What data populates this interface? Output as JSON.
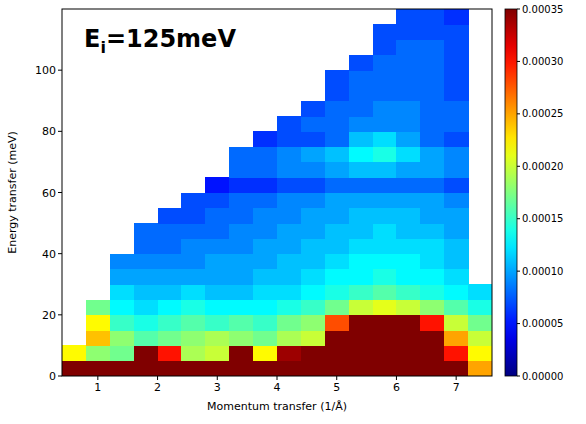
{
  "chart_data": {
    "type": "heatmap",
    "annotation": {
      "text": "E",
      "subscript": "i",
      "suffix": "=125meV"
    },
    "x_label": "Momentum transfer (1/Å)",
    "y_label": "Energy transfer (meV)",
    "xlim": [
      0.4,
      7.6
    ],
    "ylim": [
      0,
      120
    ],
    "xticks": [
      1,
      2,
      3,
      4,
      5,
      6,
      7
    ],
    "yticks": [
      0,
      20,
      40,
      60,
      80,
      100
    ],
    "x_edges": [
      0.4,
      0.8,
      1.2,
      1.6,
      2.0,
      2.4,
      2.8,
      3.2,
      3.6,
      4.0,
      4.4,
      4.8,
      5.2,
      5.6,
      6.0,
      6.4,
      6.8,
      7.2,
      7.6
    ],
    "y_edges": [
      0,
      5,
      10,
      15,
      20,
      25,
      30,
      35,
      40,
      45,
      50,
      55,
      60,
      65,
      70,
      75,
      80,
      85,
      90,
      95,
      100,
      105,
      110,
      115,
      120
    ],
    "cells": [
      [
        0.0004,
        0.0004,
        0.0004,
        0.0004,
        0.0004,
        0.0004,
        0.0004,
        0.0004,
        0.0004,
        0.0004,
        0.0004,
        0.0004,
        0.0004,
        0.0004,
        0.0004,
        0.0004,
        0.0004,
        0.00025
      ],
      [
        0.00022,
        0.00018,
        0.00017,
        0.00038,
        0.0003,
        0.00019,
        0.0002,
        0.00036,
        0.00022,
        0.00034,
        0.00036,
        0.00038,
        0.0004,
        0.0004,
        0.0004,
        0.0004,
        0.0003,
        0.00022
      ],
      [
        null,
        0.00024,
        0.00018,
        0.00016,
        0.00017,
        0.00018,
        0.00019,
        0.00018,
        0.00017,
        0.00019,
        0.0002,
        0.00036,
        0.0004,
        0.0004,
        0.0004,
        0.00038,
        0.00025,
        0.0002
      ],
      [
        null,
        0.00022,
        0.00015,
        0.00014,
        0.00015,
        0.00016,
        0.00015,
        0.00016,
        0.00015,
        0.00017,
        0.00018,
        0.00028,
        0.00036,
        0.00038,
        0.00036,
        0.0003,
        0.0002,
        0.00017
      ],
      [
        null,
        0.00017,
        0.00013,
        0.00012,
        0.00013,
        0.00014,
        0.00013,
        0.00013,
        0.00013,
        0.00014,
        0.00015,
        0.00017,
        0.0002,
        0.00021,
        0.0002,
        0.00018,
        0.00016,
        0.00014
      ],
      [
        null,
        null,
        0.00012,
        0.00011,
        0.00011,
        0.00012,
        0.00011,
        0.00011,
        0.00012,
        0.00012,
        0.00013,
        0.00014,
        0.00015,
        0.00016,
        0.00015,
        0.00014,
        0.00013,
        0.00012
      ],
      [
        null,
        null,
        0.0001,
        0.0001,
        0.0001,
        0.0001,
        0.0001,
        0.0001,
        0.00011,
        0.00011,
        0.00012,
        0.00013,
        0.00013,
        0.00014,
        0.00013,
        0.00013,
        0.00012,
        null
      ],
      [
        null,
        null,
        9e-05,
        9e-05,
        9e-05,
        9e-05,
        0.0001,
        0.0001,
        0.0001,
        0.00011,
        0.00011,
        0.00012,
        0.00013,
        0.00013,
        0.00013,
        0.00012,
        0.00011,
        null
      ],
      [
        null,
        null,
        null,
        8e-05,
        8e-05,
        9e-05,
        9e-05,
        9e-05,
        0.0001,
        0.0001,
        0.00011,
        0.00011,
        0.00012,
        0.00012,
        0.00012,
        0.00012,
        0.00011,
        null
      ],
      [
        null,
        null,
        null,
        8e-05,
        8e-05,
        8e-05,
        8e-05,
        9e-05,
        9e-05,
        0.0001,
        0.0001,
        0.00011,
        0.00011,
        0.00012,
        0.00011,
        0.00011,
        0.0001,
        null
      ],
      [
        null,
        null,
        null,
        null,
        7e-05,
        7e-05,
        8e-05,
        8e-05,
        9e-05,
        9e-05,
        0.0001,
        0.0001,
        0.00011,
        0.00011,
        0.00011,
        0.0001,
        0.0001,
        null
      ],
      [
        null,
        null,
        null,
        null,
        null,
        7e-05,
        7e-05,
        8e-05,
        8e-05,
        9e-05,
        9e-05,
        0.0001,
        0.0001,
        0.0001,
        0.0001,
        0.0001,
        9e-05,
        null
      ],
      [
        null,
        null,
        null,
        null,
        null,
        null,
        5e-05,
        6e-05,
        6e-05,
        7e-05,
        7e-05,
        8e-05,
        8e-05,
        8e-05,
        8e-05,
        8e-05,
        7e-05,
        null
      ],
      [
        null,
        null,
        null,
        null,
        null,
        null,
        null,
        8e-05,
        8e-05,
        9e-05,
        9e-05,
        0.0001,
        0.00011,
        0.00011,
        0.0001,
        0.0001,
        9e-05,
        null
      ],
      [
        null,
        null,
        null,
        null,
        null,
        null,
        null,
        8e-05,
        8e-05,
        9e-05,
        0.0001,
        0.00011,
        0.00013,
        0.00014,
        0.00012,
        0.0001,
        9e-05,
        null
      ],
      [
        null,
        null,
        null,
        null,
        null,
        null,
        null,
        null,
        6e-05,
        7e-05,
        7e-05,
        8e-05,
        0.00011,
        0.00012,
        0.0001,
        8e-05,
        7e-05,
        null
      ],
      [
        null,
        null,
        null,
        null,
        null,
        null,
        null,
        null,
        null,
        7e-05,
        8e-05,
        8e-05,
        9e-05,
        9e-05,
        9e-05,
        8e-05,
        8e-05,
        null
      ],
      [
        null,
        null,
        null,
        null,
        null,
        null,
        null,
        null,
        null,
        null,
        7e-05,
        8e-05,
        8e-05,
        9e-05,
        9e-05,
        8e-05,
        8e-05,
        null
      ],
      [
        null,
        null,
        null,
        null,
        null,
        null,
        null,
        null,
        null,
        null,
        null,
        7e-05,
        8e-05,
        8e-05,
        8e-05,
        8e-05,
        7e-05,
        null
      ],
      [
        null,
        null,
        null,
        null,
        null,
        null,
        null,
        null,
        null,
        null,
        null,
        7e-05,
        8e-05,
        8e-05,
        8e-05,
        8e-05,
        7e-05,
        null
      ],
      [
        null,
        null,
        null,
        null,
        null,
        null,
        null,
        null,
        null,
        null,
        null,
        null,
        7e-05,
        8e-05,
        8e-05,
        8e-05,
        7e-05,
        null
      ],
      [
        null,
        null,
        null,
        null,
        null,
        null,
        null,
        null,
        null,
        null,
        null,
        null,
        null,
        7e-05,
        8e-05,
        8e-05,
        7e-05,
        null
      ],
      [
        null,
        null,
        null,
        null,
        null,
        null,
        null,
        null,
        null,
        null,
        null,
        null,
        null,
        7e-05,
        7e-05,
        7e-05,
        7e-05,
        null
      ],
      [
        null,
        null,
        null,
        null,
        null,
        null,
        null,
        null,
        null,
        null,
        null,
        null,
        null,
        null,
        7e-05,
        7e-05,
        6e-05,
        null
      ]
    ],
    "colorbar": {
      "range": [
        0,
        0.00035
      ],
      "ticks": [
        {
          "value": 0,
          "label": "0.00000"
        },
        {
          "value": 5e-05,
          "label": "0.00005"
        },
        {
          "value": 0.0001,
          "label": "0.00010"
        },
        {
          "value": 0.00015,
          "label": "0.00015"
        },
        {
          "value": 0.0002,
          "label": "0.00020"
        },
        {
          "value": 0.00025,
          "label": "0.00025"
        },
        {
          "value": 0.0003,
          "label": "0.00030"
        },
        {
          "value": 0.00035,
          "label": "0.00035"
        }
      ]
    }
  }
}
